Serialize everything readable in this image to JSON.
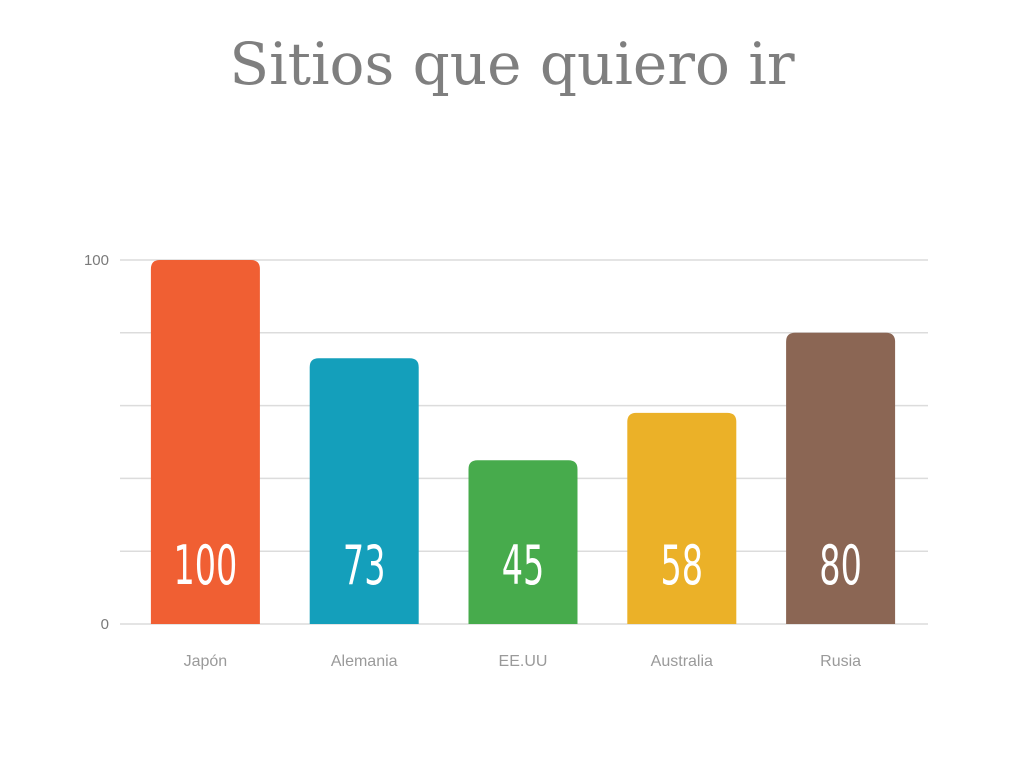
{
  "chart_data": {
    "type": "bar",
    "title": "Sitios que quiero ir",
    "xlabel": "",
    "ylabel": "",
    "categories": [
      "Japón",
      "Alemania",
      "EE.UU",
      "Australia",
      "Rusia"
    ],
    "values": [
      100,
      73,
      45,
      58,
      80
    ],
    "value_labels": [
      "100",
      "73",
      "45",
      "58",
      "80"
    ],
    "colors": [
      "#f05f33",
      "#149fbb",
      "#47ab4c",
      "#ebb128",
      "#8b6654"
    ],
    "ylim": [
      0,
      100
    ],
    "y_tick_labels": [
      {
        "value": 0,
        "label": "0"
      },
      {
        "value": 100,
        "label": "100"
      }
    ],
    "gridlines": [
      0,
      20,
      40,
      60,
      80,
      100
    ],
    "grid": true,
    "legend": "none"
  }
}
